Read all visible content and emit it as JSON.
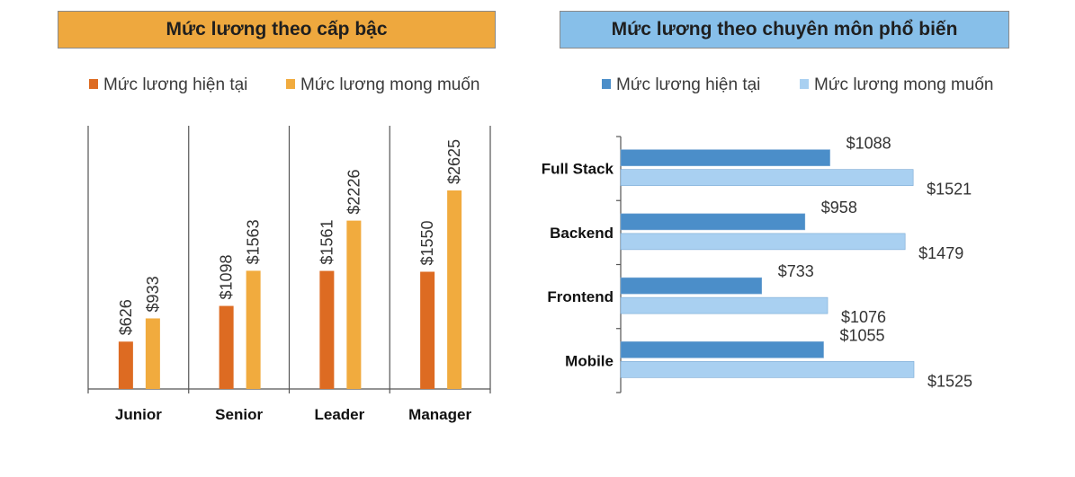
{
  "chart_data": [
    {
      "type": "bar",
      "title": "Mức lương theo cấp bậc",
      "categories": [
        "Junior",
        "Senior",
        "Leader",
        "Manager"
      ],
      "series": [
        {
          "name": "Mức lương hiện tại",
          "values": [
            626,
            1098,
            1561,
            1550
          ],
          "labels": [
            "$626",
            "$1098",
            "$1561",
            "$1550"
          ]
        },
        {
          "name": "Mức lương mong muốn",
          "values": [
            933,
            1563,
            2226,
            2625
          ],
          "labels": [
            "$933",
            "$1563",
            "$2226",
            "$2625"
          ]
        }
      ],
      "ylim": [
        0,
        3000
      ],
      "colors": [
        "#dd6b22",
        "#f1ab3e"
      ],
      "legend": "top-center",
      "grid": false
    },
    {
      "type": "bar",
      "orientation": "horizontal",
      "title": "Mức lương theo chuyên môn phổ biến",
      "categories": [
        "Full Stack",
        "Backend",
        "Frontend",
        "Mobile"
      ],
      "series": [
        {
          "name": "Mức lương hiện tại",
          "values": [
            1088,
            958,
            733,
            1055
          ],
          "labels": [
            "$1088",
            "$958",
            "$733",
            "$1055"
          ]
        },
        {
          "name": "Mức lương mong muốn",
          "values": [
            1521,
            1479,
            1076,
            1525
          ],
          "labels": [
            "$1521",
            "$1479",
            "$1076",
            "$1525"
          ]
        }
      ],
      "xlim": [
        0,
        1600
      ],
      "colors": [
        "#4b8ec9",
        "#a9d0f1"
      ],
      "legend": "top-center",
      "grid": false
    }
  ]
}
